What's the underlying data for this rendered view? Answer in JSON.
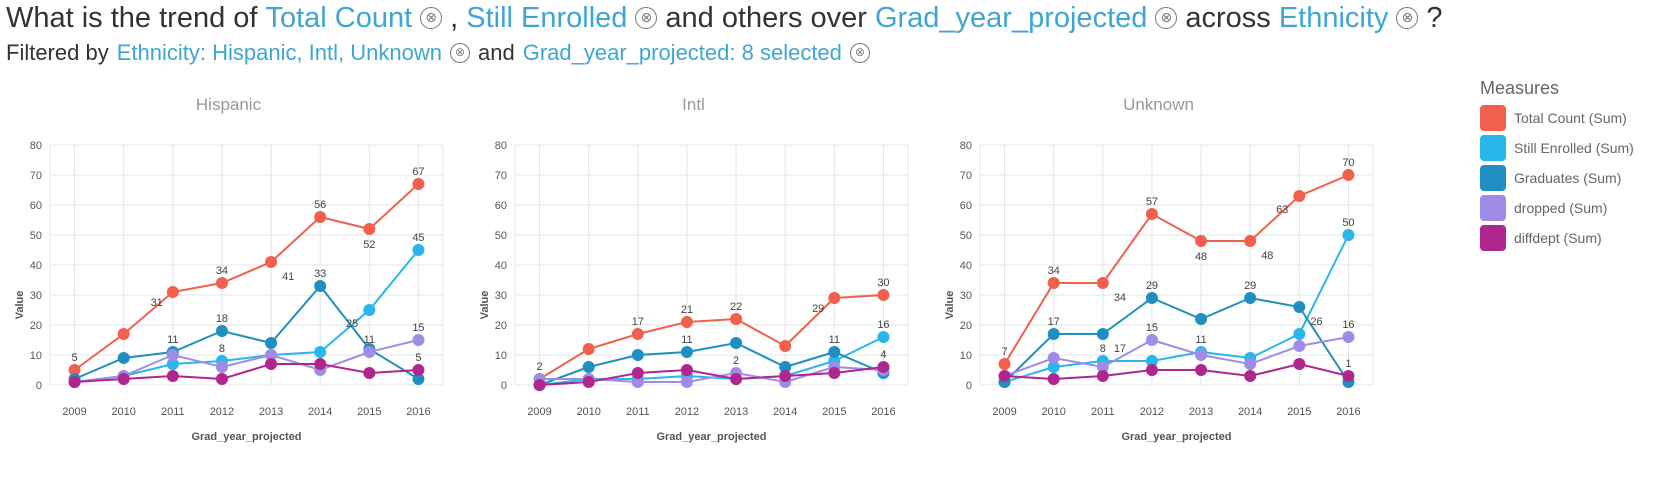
{
  "question": {
    "prefix": "What is the trend of",
    "measure1": "Total Count",
    "comma": ",",
    "measure2": "Still Enrolled",
    "mid": "and others over",
    "xfield": "Grad_year_projected",
    "across": "across",
    "splitfield": "Ethnicity",
    "qmark": "?",
    "close_glyph": "⊗"
  },
  "filters": {
    "prefix": "Filtered by",
    "filter1": "Ethnicity: Hispanic, Intl, Unknown",
    "and": "and",
    "filter2": "Grad_year_projected: 8 selected"
  },
  "legend": {
    "title": "Measures",
    "items": [
      {
        "label": "Total Count (Sum)",
        "color": "#f0604d"
      },
      {
        "label": "Still Enrolled (Sum)",
        "color": "#29b6ea"
      },
      {
        "label": "Graduates (Sum)",
        "color": "#1e8fc0"
      },
      {
        "label": "dropped (Sum)",
        "color": "#a08ce6"
      },
      {
        "label": "diffdept (Sum)",
        "color": "#b0268f"
      }
    ]
  },
  "chart_data": [
    {
      "type": "line",
      "title": "Hispanic",
      "xlabel": "Grad_year_projected",
      "ylabel": "Value",
      "ylim": [
        0,
        80
      ],
      "yticks": [
        0,
        10,
        20,
        30,
        40,
        50,
        60,
        70,
        80
      ],
      "x": [
        "2009",
        "2010",
        "2011",
        "2012",
        "2013",
        "2014",
        "2015",
        "2016"
      ],
      "series": [
        {
          "name": "Total Count (Sum)",
          "values": [
            5,
            17,
            31,
            34,
            41,
            56,
            52,
            67
          ]
        },
        {
          "name": "Still Enrolled (Sum)",
          "values": [
            1,
            3,
            7,
            8,
            10,
            11,
            25,
            45
          ]
        },
        {
          "name": "Graduates (Sum)",
          "values": [
            2,
            9,
            11,
            18,
            14,
            33,
            12,
            2
          ]
        },
        {
          "name": "dropped (Sum)",
          "values": [
            1,
            3,
            10,
            6,
            10,
            5,
            11,
            15
          ]
        },
        {
          "name": "diffdept (Sum)",
          "values": [
            1,
            2,
            3,
            2,
            7,
            7,
            4,
            5
          ]
        }
      ],
      "data_labels": [
        {
          "text": "5",
          "x": "2009",
          "y": 5,
          "pos": "above"
        },
        {
          "text": "31",
          "x": "2011",
          "y": 31,
          "pos": "left"
        },
        {
          "text": "34",
          "x": "2012",
          "y": 34,
          "pos": "above"
        },
        {
          "text": "41",
          "x": "2013",
          "y": 41,
          "pos": "belowright"
        },
        {
          "text": "56",
          "x": "2014",
          "y": 56,
          "pos": "above"
        },
        {
          "text": "52",
          "x": "2015",
          "y": 52,
          "pos": "below"
        },
        {
          "text": "67",
          "x": "2016",
          "y": 67,
          "pos": "above"
        },
        {
          "text": "45",
          "x": "2016",
          "y": 45,
          "pos": "above"
        },
        {
          "text": "11",
          "x": "2011",
          "y": 11,
          "pos": "above"
        },
        {
          "text": "18",
          "x": "2012",
          "y": 18,
          "pos": "above"
        },
        {
          "text": "8",
          "x": "2012",
          "y": 8,
          "pos": "above"
        },
        {
          "text": "33",
          "x": "2014",
          "y": 33,
          "pos": "above"
        },
        {
          "text": "25",
          "x": "2015",
          "y": 25,
          "pos": "belowleft"
        },
        {
          "text": "11",
          "x": "2015",
          "y": 11,
          "pos": "above"
        },
        {
          "text": "15",
          "x": "2016",
          "y": 15,
          "pos": "above"
        },
        {
          "text": "5",
          "x": "2016",
          "y": 5,
          "pos": "above"
        }
      ]
    },
    {
      "type": "line",
      "title": "Intl",
      "xlabel": "Grad_year_projected",
      "ylabel": "Value",
      "ylim": [
        0,
        80
      ],
      "yticks": [
        0,
        10,
        20,
        30,
        40,
        50,
        60,
        70,
        80
      ],
      "x": [
        "2009",
        "2010",
        "2011",
        "2012",
        "2013",
        "2014",
        "2015",
        "2016"
      ],
      "series": [
        {
          "name": "Total Count (Sum)",
          "values": [
            2,
            12,
            17,
            21,
            22,
            13,
            29,
            30
          ]
        },
        {
          "name": "Still Enrolled (Sum)",
          "values": [
            0,
            2,
            2,
            3,
            2,
            3,
            8,
            16
          ]
        },
        {
          "name": "Graduates (Sum)",
          "values": [
            0,
            6,
            10,
            11,
            14,
            6,
            11,
            4
          ]
        },
        {
          "name": "dropped (Sum)",
          "values": [
            2,
            2,
            1,
            1,
            4,
            1,
            6,
            5
          ]
        },
        {
          "name": "diffdept (Sum)",
          "values": [
            0,
            1,
            4,
            5,
            2,
            3,
            4,
            6
          ]
        }
      ],
      "data_labels": [
        {
          "text": "2",
          "x": "2009",
          "y": 2,
          "pos": "above"
        },
        {
          "text": "17",
          "x": "2011",
          "y": 17,
          "pos": "above"
        },
        {
          "text": "21",
          "x": "2012",
          "y": 21,
          "pos": "above"
        },
        {
          "text": "22",
          "x": "2013",
          "y": 22,
          "pos": "above"
        },
        {
          "text": "29",
          "x": "2015",
          "y": 29,
          "pos": "left"
        },
        {
          "text": "30",
          "x": "2016",
          "y": 30,
          "pos": "above"
        },
        {
          "text": "16",
          "x": "2016",
          "y": 16,
          "pos": "above"
        },
        {
          "text": "11",
          "x": "2012",
          "y": 11,
          "pos": "above"
        },
        {
          "text": "2",
          "x": "2013",
          "y": 4,
          "pos": "above"
        },
        {
          "text": "11",
          "x": "2015",
          "y": 11,
          "pos": "above"
        },
        {
          "text": "4",
          "x": "2016",
          "y": 6,
          "pos": "above"
        }
      ]
    },
    {
      "type": "line",
      "title": "Unknown",
      "xlabel": "Grad_year_projected",
      "ylabel": "Value",
      "ylim": [
        0,
        80
      ],
      "yticks": [
        0,
        10,
        20,
        30,
        40,
        50,
        60,
        70,
        80
      ],
      "x": [
        "2009",
        "2010",
        "2011",
        "2012",
        "2013",
        "2014",
        "2015",
        "2016"
      ],
      "series": [
        {
          "name": "Total Count (Sum)",
          "values": [
            7,
            34,
            34,
            57,
            48,
            48,
            63,
            70
          ]
        },
        {
          "name": "Still Enrolled (Sum)",
          "values": [
            1,
            6,
            8,
            8,
            11,
            9,
            17,
            50
          ]
        },
        {
          "name": "Graduates (Sum)",
          "values": [
            1,
            17,
            17,
            29,
            22,
            29,
            26,
            1
          ]
        },
        {
          "name": "dropped (Sum)",
          "values": [
            3,
            9,
            6,
            15,
            10,
            7,
            13,
            16
          ]
        },
        {
          "name": "diffdept (Sum)",
          "values": [
            3,
            2,
            3,
            5,
            5,
            3,
            7,
            3
          ]
        }
      ],
      "data_labels": [
        {
          "text": "7",
          "x": "2009",
          "y": 7,
          "pos": "above"
        },
        {
          "text": "34",
          "x": "2010",
          "y": 34,
          "pos": "above"
        },
        {
          "text": "34",
          "x": "2011",
          "y": 34,
          "pos": "belowright"
        },
        {
          "text": "57",
          "x": "2012",
          "y": 57,
          "pos": "above"
        },
        {
          "text": "48",
          "x": "2013",
          "y": 48,
          "pos": "below"
        },
        {
          "text": "48",
          "x": "2014",
          "y": 48,
          "pos": "belowright"
        },
        {
          "text": "63",
          "x": "2015",
          "y": 63,
          "pos": "belowleft"
        },
        {
          "text": "70",
          "x": "2016",
          "y": 70,
          "pos": "above"
        },
        {
          "text": "50",
          "x": "2016",
          "y": 50,
          "pos": "above"
        },
        {
          "text": "17",
          "x": "2010",
          "y": 17,
          "pos": "above"
        },
        {
          "text": "17",
          "x": "2011",
          "y": 17,
          "pos": "belowright"
        },
        {
          "text": "8",
          "x": "2011",
          "y": 8,
          "pos": "above"
        },
        {
          "text": "29",
          "x": "2012",
          "y": 29,
          "pos": "above"
        },
        {
          "text": "15",
          "x": "2012",
          "y": 15,
          "pos": "above"
        },
        {
          "text": "11",
          "x": "2013",
          "y": 11,
          "pos": "above"
        },
        {
          "text": "29",
          "x": "2014",
          "y": 29,
          "pos": "above"
        },
        {
          "text": "26",
          "x": "2015",
          "y": 26,
          "pos": "belowright"
        },
        {
          "text": "16",
          "x": "2016",
          "y": 16,
          "pos": "above"
        },
        {
          "text": "1",
          "x": "2016",
          "y": 3,
          "pos": "above"
        }
      ]
    }
  ]
}
